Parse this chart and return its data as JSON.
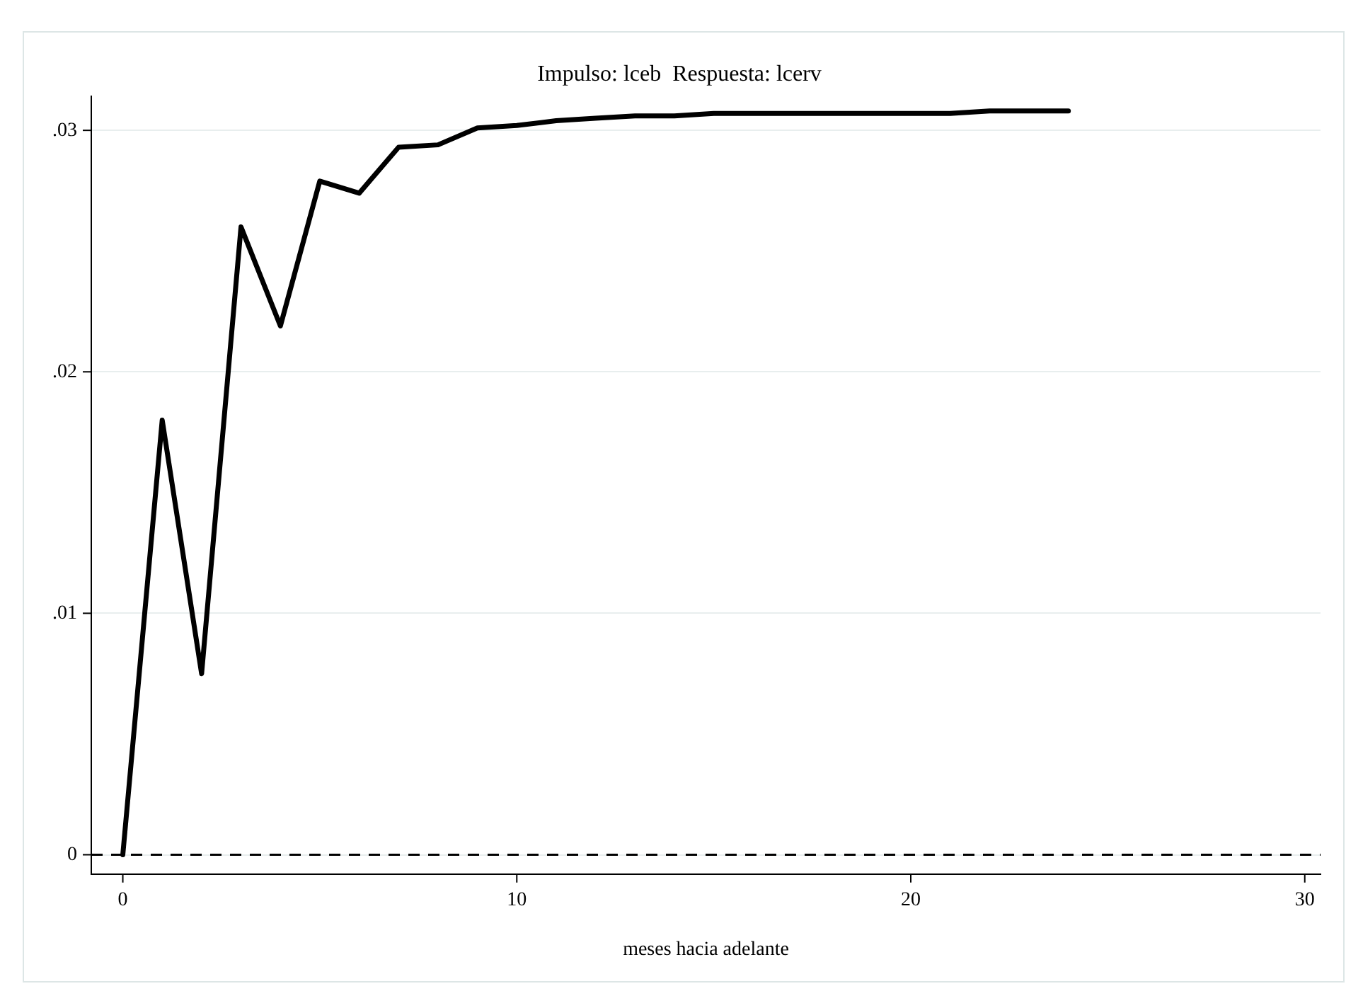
{
  "chart_data": {
    "type": "line",
    "title": "Impulso: lceb  Respuesta: lcerv",
    "xlabel": "meses hacia adelante",
    "x": [
      0,
      1,
      2,
      3,
      4,
      5,
      6,
      7,
      8,
      9,
      10,
      11,
      12,
      13,
      14,
      15,
      16,
      17,
      18,
      19,
      20,
      21,
      22,
      23,
      24
    ],
    "series": [
      {
        "color": "#000000",
        "values": [
          0,
          0.018,
          0.0075,
          0.026,
          0.0219,
          0.0279,
          0.0274,
          0.0293,
          0.0294,
          0.0301,
          0.0302,
          0.0304,
          0.0305,
          0.0306,
          0.0306,
          0.0307,
          0.0307,
          0.0307,
          0.0307,
          0.0307,
          0.0307,
          0.0307,
          0.0308,
          0.0308,
          0.0308
        ]
      }
    ],
    "xlim": [
      -0.8,
      30.4
    ],
    "xticks": [
      0,
      10,
      20,
      30
    ],
    "ylim": [
      -0.0008,
      0.0314
    ],
    "yticks": [
      {
        "value": 0,
        "label": "0"
      },
      {
        "value": 0.01,
        "label": ".01"
      },
      {
        "value": 0.02,
        "label": ".02"
      },
      {
        "value": 0.03,
        "label": ".03"
      }
    ],
    "ref_lines": [
      {
        "axis": "y",
        "value": 0,
        "color": "#000000",
        "line_style": "dashed"
      }
    ],
    "grid": "y",
    "legend": false,
    "marker": "none",
    "line_style": "solid"
  }
}
